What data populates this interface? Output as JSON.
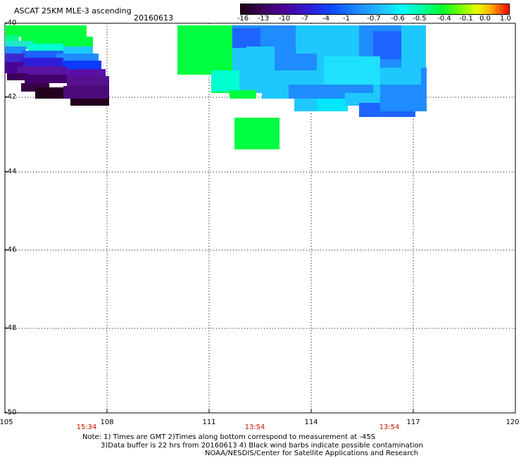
{
  "header": {
    "title": "ASCAT 25KM MLE-3 ascending",
    "date": "20160613"
  },
  "colorbar": {
    "labels": [
      "-16",
      "-13",
      "-10",
      "-7",
      "-4",
      "-1",
      "-0.7",
      "-0.6",
      "-0.5",
      "-0.4",
      "-0.1",
      "0.0",
      "1.0"
    ]
  },
  "axes": {
    "lat_labels": [
      "-40",
      "-42",
      "-44",
      "-46",
      "-48",
      "-50"
    ],
    "lon_labels": [
      "105",
      "108",
      "111",
      "114",
      "117",
      "120"
    ],
    "time_labels": [
      "15:34",
      "13:54",
      "13:54"
    ]
  },
  "note": {
    "line1": "Note: 1) Times are GMT 2)Times along bottom correspond to measurement at -45S",
    "line2": "3)Data buffer is 22 hrs from 20160613 4) Black wind barbs indicate possible contamination",
    "line3": "NOAA/NESDIS/Center for Satellite Applications and Research"
  }
}
